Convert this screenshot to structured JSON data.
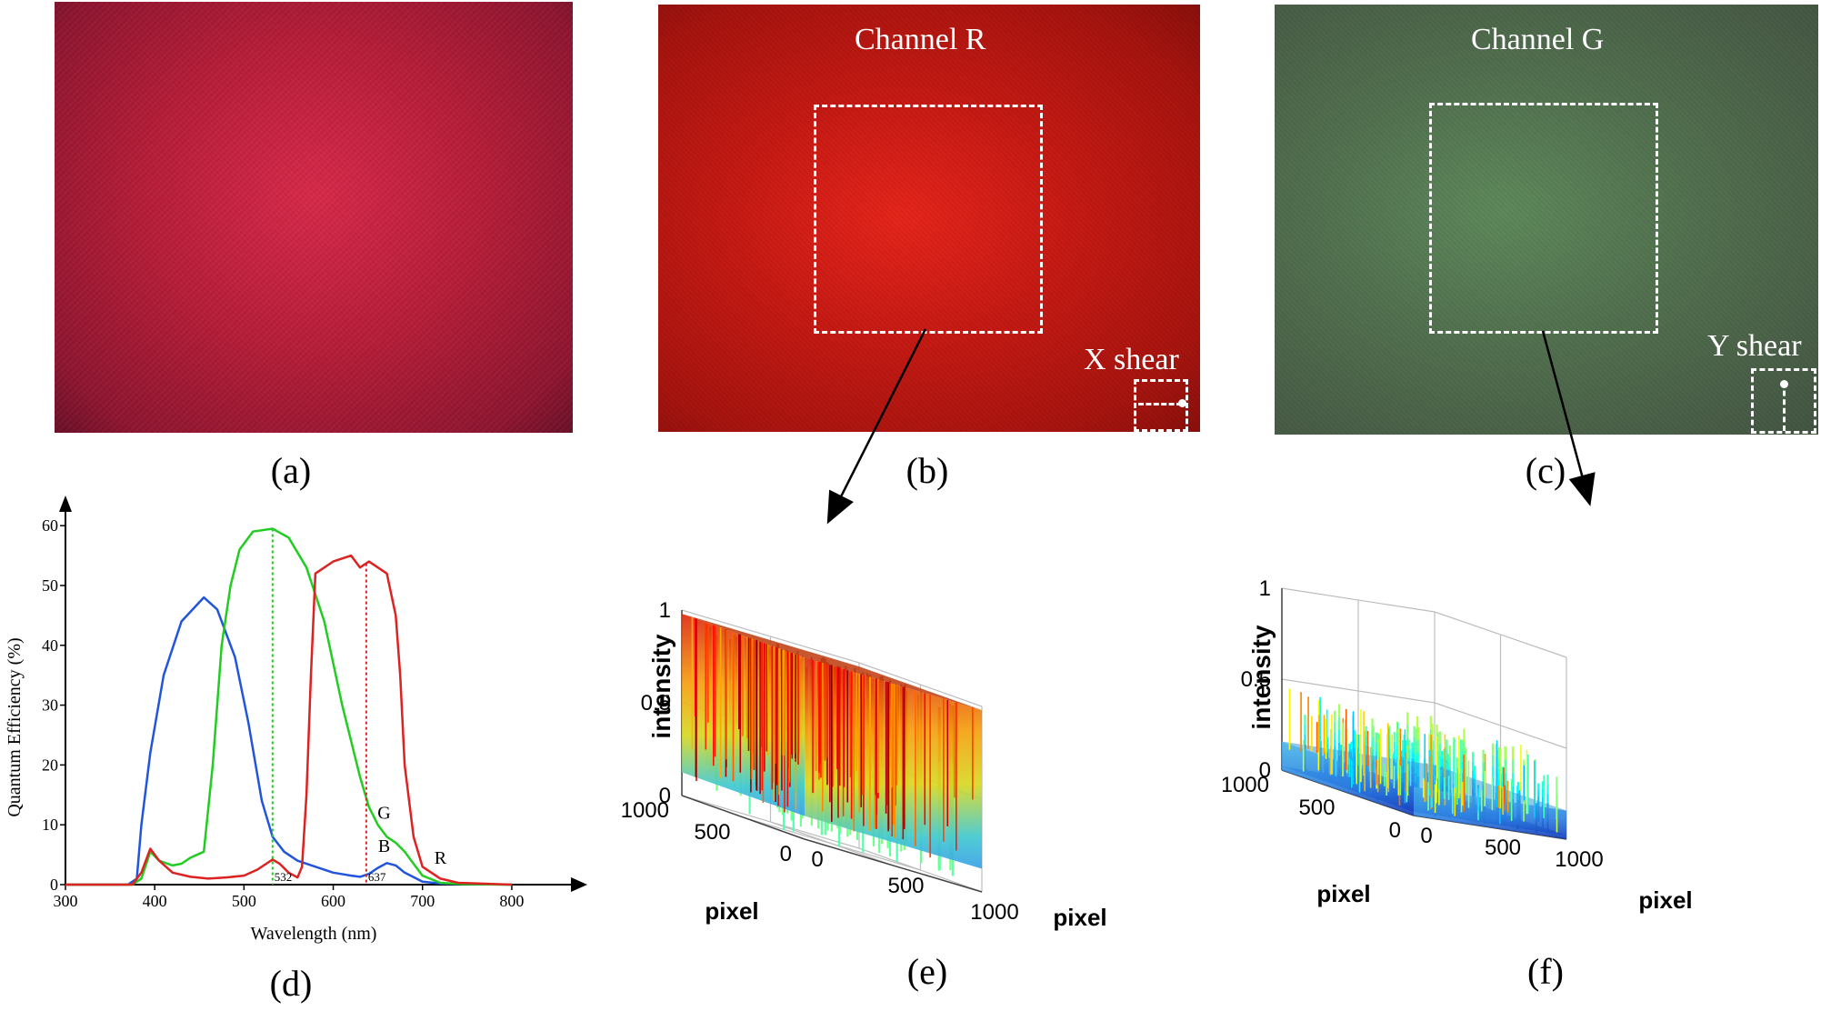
{
  "panels": {
    "a": {
      "letter": "(a)",
      "bg": "#b21a34"
    },
    "b": {
      "letter": "(b)",
      "label": "Channel R",
      "shear_label": "X shear",
      "bg": "#c01818"
    },
    "c": {
      "letter": "(c)",
      "label": "Channel G",
      "shear_label": "Y shear",
      "bg": "#4d6a4c"
    },
    "d": {
      "letter": "(d)"
    },
    "e": {
      "letter": "(e)"
    },
    "f": {
      "letter": "(f)"
    }
  },
  "chart_data": [
    {
      "type": "line",
      "xlabel": "Wavelength (nm)",
      "ylabel": "Quantum Efficiency (%)",
      "xlim": [
        300,
        850
      ],
      "ylim": [
        0,
        62
      ],
      "x_ticks": [
        300,
        400,
        500,
        600,
        700,
        800
      ],
      "y_ticks": [
        0,
        10,
        20,
        30,
        40,
        50,
        60
      ],
      "markers": [
        {
          "x": 532,
          "label": "532",
          "color": "#22cc22"
        },
        {
          "x": 637,
          "label": "637",
          "color": "#dd2222"
        }
      ],
      "series": [
        {
          "name": "B",
          "color": "#2255dd",
          "label_at": [
            657,
            5.5
          ],
          "x": [
            300,
            370,
            380,
            385,
            395,
            410,
            430,
            455,
            470,
            490,
            505,
            520,
            532,
            545,
            560,
            580,
            600,
            620,
            630,
            640,
            650,
            660,
            670,
            680,
            700,
            720,
            740,
            800
          ],
          "y": [
            0,
            0,
            1,
            10,
            22,
            35,
            44,
            48,
            46,
            38,
            27,
            14,
            8,
            5.5,
            4,
            3,
            2,
            1.5,
            1.3,
            1.8,
            2.8,
            3.6,
            3.2,
            2,
            0.5,
            0.2,
            0.1,
            0
          ]
        },
        {
          "name": "G",
          "color": "#22cc22",
          "label_at": [
            657,
            11
          ],
          "x": [
            300,
            375,
            385,
            395,
            405,
            420,
            430,
            440,
            455,
            465,
            475,
            485,
            495,
            510,
            532,
            550,
            570,
            590,
            610,
            630,
            640,
            650,
            660,
            670,
            680,
            690,
            700,
            720,
            740,
            800
          ],
          "y": [
            0,
            0,
            1,
            5.5,
            4,
            3.2,
            3.5,
            4.5,
            5.5,
            20,
            40,
            50,
            56,
            59,
            59.5,
            58,
            53,
            44,
            30,
            18,
            13,
            10,
            8,
            7,
            5.5,
            3.5,
            1.5,
            0.3,
            0.1,
            0
          ]
        },
        {
          "name": "R",
          "color": "#dd2222",
          "label_at": [
            720,
            3.5
          ],
          "x": [
            300,
            375,
            385,
            395,
            405,
            420,
            440,
            460,
            480,
            500,
            515,
            525,
            532,
            540,
            550,
            560,
            565,
            570,
            575,
            580,
            600,
            620,
            630,
            640,
            660,
            670,
            675,
            680,
            690,
            700,
            720,
            740,
            800
          ],
          "y": [
            0,
            0,
            2,
            6,
            4,
            2,
            1.3,
            1,
            1.2,
            1.5,
            2.5,
            3.5,
            4.2,
            3.5,
            2,
            1.2,
            3,
            15,
            35,
            52,
            54,
            55,
            53,
            54,
            52,
            45,
            35,
            20,
            8,
            3,
            1,
            0.3,
            0
          ]
        }
      ]
    },
    {
      "type": "surface3d",
      "zlabel": "intensity",
      "xlabel": "pixel",
      "ylabel": "pixel",
      "z_ticks": [
        "0",
        "0.5",
        "1"
      ],
      "x_ticks": [
        "0",
        "500",
        "1000"
      ],
      "y_ticks": [
        "0",
        "500",
        "1000"
      ],
      "colormap": "jet",
      "top_level": 0.98,
      "noise_floor": 0.25
    },
    {
      "type": "surface3d",
      "zlabel": "intensity",
      "xlabel": "pixel",
      "ylabel": "pixel",
      "z_ticks": [
        "0",
        "0.5",
        "1"
      ],
      "x_ticks": [
        "0",
        "500",
        "1000"
      ],
      "y_ticks": [
        "0",
        "500",
        "1000"
      ],
      "colormap": "jet",
      "top_level": 0.35,
      "noise_floor": 0.05
    }
  ]
}
